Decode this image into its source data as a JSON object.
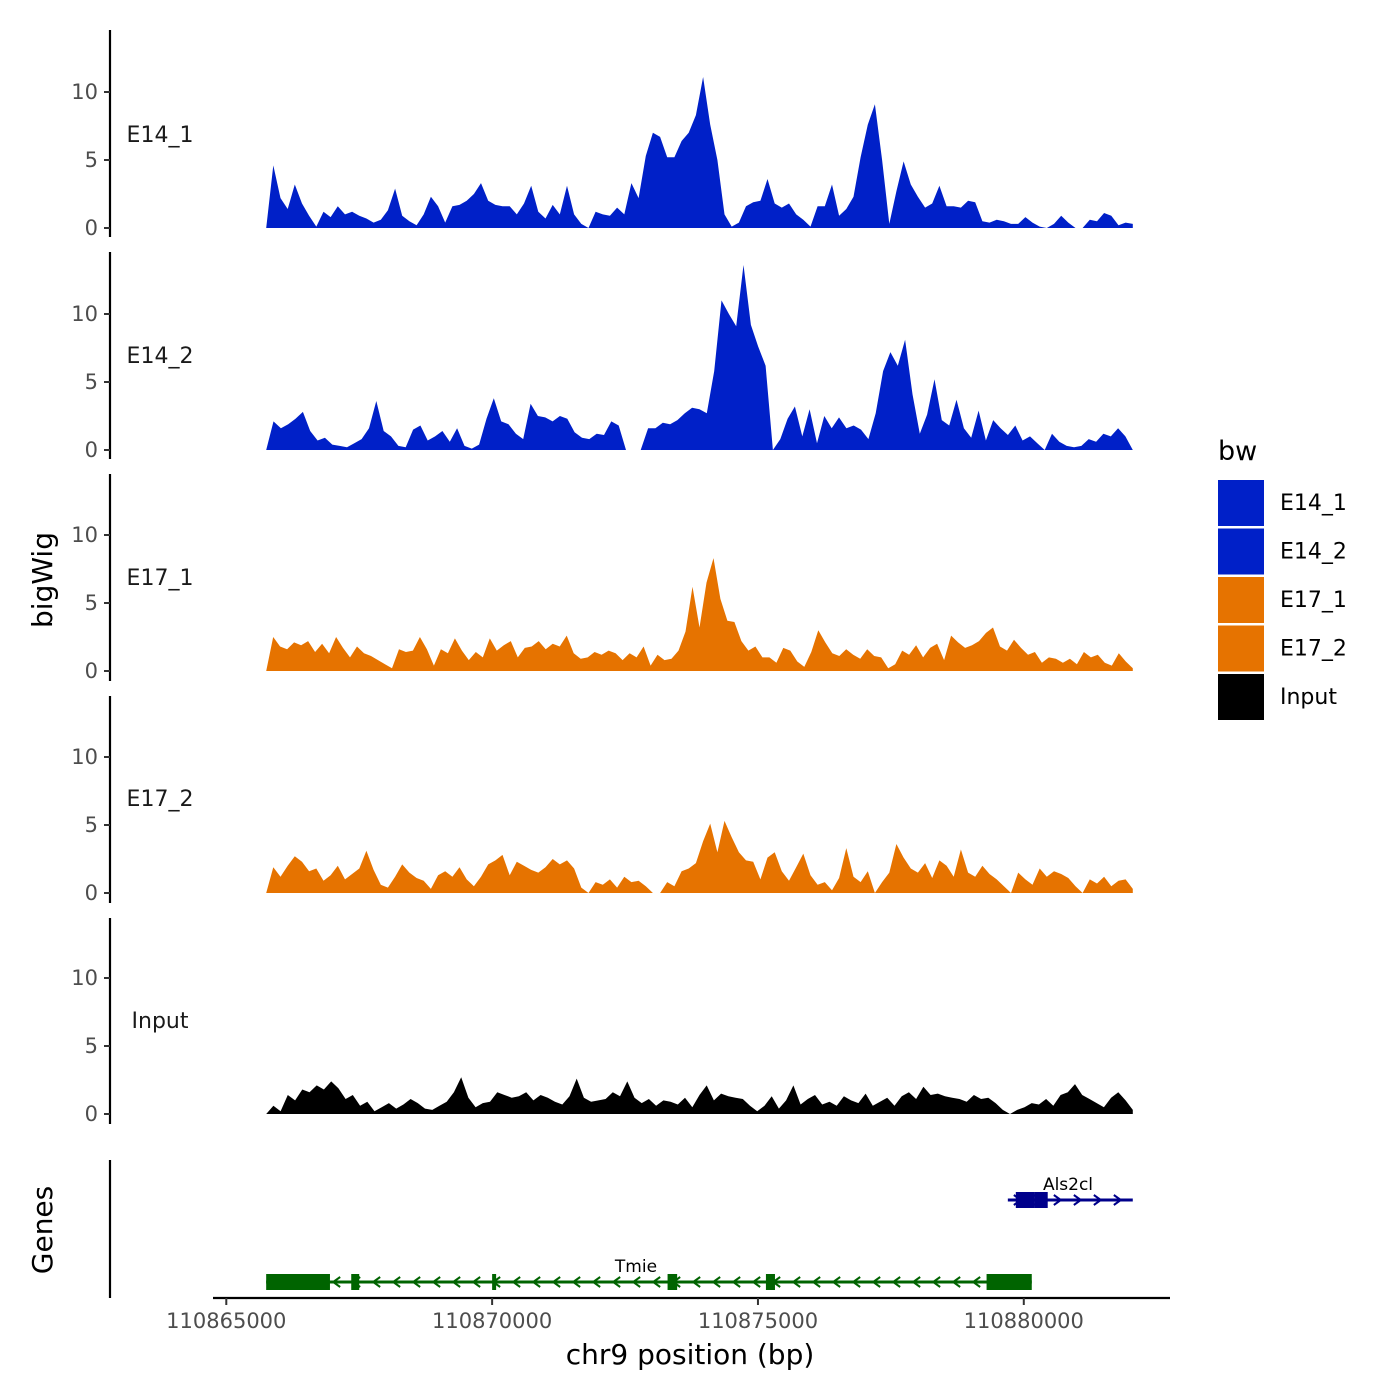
{
  "chart_data": {
    "type": "area",
    "title": "",
    "ylabel": "bigWig",
    "xlabel": "chr9 position (bp)",
    "genes_label": "Genes",
    "ylim": [
      0,
      14.5
    ],
    "yticks": [
      0,
      5,
      10
    ],
    "ytick_labels": [
      "0",
      "5",
      "10"
    ],
    "xlim": [
      110864750,
      110882750
    ],
    "xticks": [
      110865000,
      110870000,
      110875000,
      110880000
    ],
    "xtick_labels": [
      "110865000",
      "110870000",
      "110875000",
      "110880000"
    ],
    "legend": {
      "title": "bw",
      "position": "right",
      "entries": [
        {
          "label": "E14_1",
          "color": "#0020c8"
        },
        {
          "label": "E14_2",
          "color": "#0020c8"
        },
        {
          "label": "E17_1",
          "color": "#e67300"
        },
        {
          "label": "E17_2",
          "color": "#e67300"
        },
        {
          "label": "Input",
          "color": "#000000"
        }
      ]
    },
    "x_start": 110865750,
    "x_end": 110882050,
    "series": [
      {
        "name": "E14_1",
        "color": "#0020c8",
        "values": [
          0,
          4.6,
          2.2,
          1.4,
          3.2,
          1.8,
          0.9,
          0.1,
          1.2,
          0.8,
          1.6,
          1.0,
          1.2,
          0.9,
          0.7,
          0.4,
          0.6,
          1.3,
          2.9,
          0.9,
          0.5,
          0.2,
          1.0,
          2.3,
          1.6,
          0.4,
          1.6,
          1.7,
          2.0,
          2.5,
          3.3,
          2.0,
          1.7,
          1.6,
          1.6,
          1.0,
          1.8,
          3.1,
          1.2,
          0.7,
          1.7,
          1.0,
          3.1,
          1.0,
          0.3,
          0.0,
          1.2,
          1.0,
          0.9,
          1.5,
          1.0,
          3.3,
          2.2,
          5.3,
          7.0,
          6.7,
          5.2,
          5.2,
          6.4,
          7.0,
          8.3,
          11.1,
          7.6,
          5.0,
          1.0,
          0.1,
          0.4,
          1.6,
          1.9,
          2.0,
          3.6,
          1.8,
          1.5,
          1.8,
          1.0,
          0.6,
          0.1,
          1.6,
          1.6,
          3.2,
          0.9,
          1.4,
          2.3,
          5.2,
          7.6,
          9.1,
          5.0,
          0.3,
          2.7,
          4.9,
          3.2,
          2.3,
          1.5,
          1.8,
          3.1,
          1.6,
          1.6,
          1.5,
          2.0,
          1.9,
          0.5,
          0.4,
          0.6,
          0.5,
          0.3,
          0.3,
          0.8,
          0.4,
          0.1,
          0.0,
          0.3,
          0.9,
          0.4,
          0.0,
          0.0,
          0.6,
          0.5,
          1.1,
          0.9,
          0.2,
          0.4,
          0.3
        ]
      },
      {
        "name": "E14_2",
        "color": "#0020c8",
        "values": [
          0,
          2.1,
          1.6,
          1.9,
          2.3,
          2.8,
          1.4,
          0.7,
          0.9,
          0.4,
          0.3,
          0.2,
          0.5,
          0.8,
          1.6,
          3.6,
          1.4,
          1.0,
          0.3,
          0.2,
          1.5,
          1.8,
          0.7,
          1.0,
          1.4,
          0.6,
          1.6,
          0.3,
          0.1,
          0.4,
          2.3,
          3.8,
          2.1,
          1.9,
          1.2,
          0.8,
          3.4,
          2.5,
          2.4,
          2.1,
          2.5,
          2.3,
          1.3,
          0.9,
          0.8,
          1.2,
          1.1,
          2.1,
          1.8,
          0.0,
          0.0,
          0.0,
          1.6,
          1.6,
          2.0,
          1.9,
          2.2,
          2.7,
          3.1,
          3.0,
          2.7,
          5.8,
          11.0,
          10.0,
          9.1,
          13.6,
          9.2,
          7.6,
          6.2,
          0.0,
          0.8,
          2.3,
          3.2,
          1.0,
          3.0,
          0.5,
          2.5,
          1.6,
          2.4,
          1.6,
          1.8,
          1.5,
          0.8,
          2.7,
          5.8,
          7.2,
          6.2,
          8.1,
          4.1,
          1.2,
          2.6,
          5.2,
          2.2,
          1.8,
          3.7,
          1.6,
          0.9,
          2.9,
          0.7,
          2.2,
          1.6,
          1.1,
          1.8,
          0.7,
          1.0,
          0.5,
          0.0,
          1.2,
          0.6,
          0.3,
          0.2,
          0.3,
          0.8,
          0.6,
          1.2,
          1.0,
          1.6,
          1.0,
          0.0
        ]
      },
      {
        "name": "E17_1",
        "color": "#e67300",
        "values": [
          0,
          2.5,
          1.8,
          1.6,
          2.1,
          1.9,
          2.2,
          1.4,
          2.0,
          1.3,
          2.5,
          1.7,
          1.0,
          1.8,
          1.3,
          1.1,
          0.8,
          0.5,
          0.2,
          1.6,
          1.4,
          1.5,
          2.5,
          1.6,
          0.4,
          1.6,
          1.3,
          2.4,
          1.5,
          0.8,
          1.4,
          1.0,
          2.4,
          1.5,
          1.9,
          2.2,
          1.0,
          1.7,
          1.8,
          2.2,
          1.6,
          2.0,
          1.8,
          2.6,
          1.3,
          0.9,
          1.0,
          1.4,
          1.2,
          1.5,
          1.3,
          0.8,
          1.3,
          1.0,
          1.8,
          0.4,
          1.2,
          0.8,
          0.9,
          1.5,
          2.9,
          6.2,
          3.2,
          6.5,
          8.3,
          5.3,
          3.7,
          3.6,
          2.2,
          1.5,
          1.8,
          1.0,
          1.0,
          0.6,
          1.7,
          1.5,
          0.7,
          0.3,
          1.4,
          3.0,
          2.1,
          1.3,
          1.1,
          1.6,
          1.2,
          0.9,
          1.6,
          1.1,
          1.0,
          0.2,
          0.5,
          1.5,
          1.2,
          1.9,
          1.0,
          1.7,
          2.0,
          0.8,
          2.6,
          2.1,
          1.7,
          1.9,
          2.2,
          2.8,
          3.2,
          1.8,
          1.5,
          2.3,
          1.7,
          1.2,
          1.4,
          0.6,
          1.0,
          0.9,
          0.6,
          0.9,
          0.5,
          1.4,
          1.0,
          1.2,
          0.6,
          0.4,
          1.3,
          0.7,
          0.2
        ]
      },
      {
        "name": "E17_2",
        "color": "#e67300",
        "values": [
          0,
          1.9,
          1.2,
          2.0,
          2.7,
          2.3,
          1.6,
          1.8,
          0.9,
          1.3,
          2.0,
          1.0,
          1.4,
          1.8,
          3.1,
          1.7,
          0.6,
          0.4,
          1.2,
          2.1,
          1.5,
          1.1,
          0.9,
          0.3,
          1.3,
          1.6,
          1.2,
          1.9,
          1.0,
          0.5,
          1.2,
          2.1,
          2.4,
          2.8,
          1.3,
          2.3,
          2.0,
          1.7,
          1.5,
          1.9,
          2.5,
          2.1,
          2.4,
          1.8,
          0.4,
          0.0,
          0.8,
          0.6,
          1.0,
          0.4,
          1.2,
          0.8,
          0.9,
          0.5,
          0.0,
          0.0,
          0.8,
          0.5,
          1.6,
          1.8,
          2.2,
          3.8,
          5.1,
          3.0,
          5.3,
          4.1,
          3.0,
          2.4,
          2.3,
          1.0,
          2.6,
          3.0,
          1.6,
          0.9,
          1.9,
          2.9,
          1.3,
          0.6,
          0.8,
          0.2,
          1.1,
          3.3,
          1.2,
          0.8,
          1.6,
          0.0,
          0.8,
          1.5,
          3.6,
          2.6,
          1.8,
          1.5,
          2.2,
          1.1,
          2.4,
          2.0,
          1.2,
          3.2,
          1.5,
          1.2,
          2.0,
          1.4,
          1.0,
          0.5,
          0.0,
          1.5,
          1.0,
          0.6,
          1.8,
          1.2,
          1.6,
          1.4,
          1.1,
          0.5,
          0.0,
          1.0,
          0.7,
          1.2,
          0.5,
          0.9,
          1.0,
          0.3
        ]
      },
      {
        "name": "Input",
        "color": "#000000",
        "values": [
          0,
          0.6,
          0.2,
          1.4,
          1.0,
          1.8,
          1.6,
          2.1,
          1.8,
          2.4,
          1.9,
          1.1,
          1.4,
          0.6,
          0.9,
          0.2,
          0.5,
          0.8,
          0.4,
          0.7,
          1.1,
          0.8,
          0.4,
          0.3,
          0.6,
          0.9,
          1.6,
          2.7,
          1.2,
          0.5,
          0.8,
          0.9,
          1.6,
          1.4,
          1.2,
          1.3,
          1.6,
          1.0,
          1.4,
          1.2,
          0.9,
          0.7,
          1.3,
          2.6,
          1.2,
          0.9,
          1.0,
          1.1,
          1.6,
          1.3,
          2.4,
          1.2,
          0.8,
          1.1,
          0.6,
          1.0,
          0.9,
          0.7,
          1.2,
          0.5,
          1.4,
          2.1,
          1.0,
          1.5,
          1.3,
          1.2,
          1.1,
          0.6,
          0.2,
          0.6,
          1.3,
          0.4,
          1.0,
          2.1,
          0.7,
          1.1,
          1.4,
          0.7,
          0.9,
          0.6,
          1.3,
          1.0,
          0.8,
          1.5,
          0.6,
          0.9,
          1.2,
          0.6,
          1.3,
          1.6,
          1.1,
          2.0,
          1.4,
          1.5,
          1.3,
          1.2,
          1.1,
          0.9,
          1.4,
          1.1,
          1.2,
          0.8,
          0.3,
          0.0,
          0.3,
          0.5,
          0.8,
          0.7,
          1.1,
          0.6,
          1.4,
          1.6,
          2.2,
          1.4,
          1.1,
          0.8,
          0.5,
          1.2,
          1.6,
          1.0,
          0.3
        ]
      }
    ],
    "genes": [
      {
        "name": "Tmie",
        "color": "#006400",
        "strand": "-",
        "row": 2,
        "start": 110865750,
        "end": 110880150,
        "exons": [
          [
            110865750,
            110866950
          ],
          [
            110867350,
            110867500
          ],
          [
            110870000,
            110870060
          ],
          [
            110873300,
            110873480
          ],
          [
            110875150,
            110875320
          ],
          [
            110879300,
            110880150
          ]
        ]
      },
      {
        "name": "Als2cl",
        "color": "#00008b",
        "strand": "+",
        "row": 1,
        "start": 110879700,
        "end": 110882050,
        "exons": [
          [
            110879850,
            110880200
          ],
          [
            110880200,
            110880450
          ]
        ]
      }
    ]
  }
}
